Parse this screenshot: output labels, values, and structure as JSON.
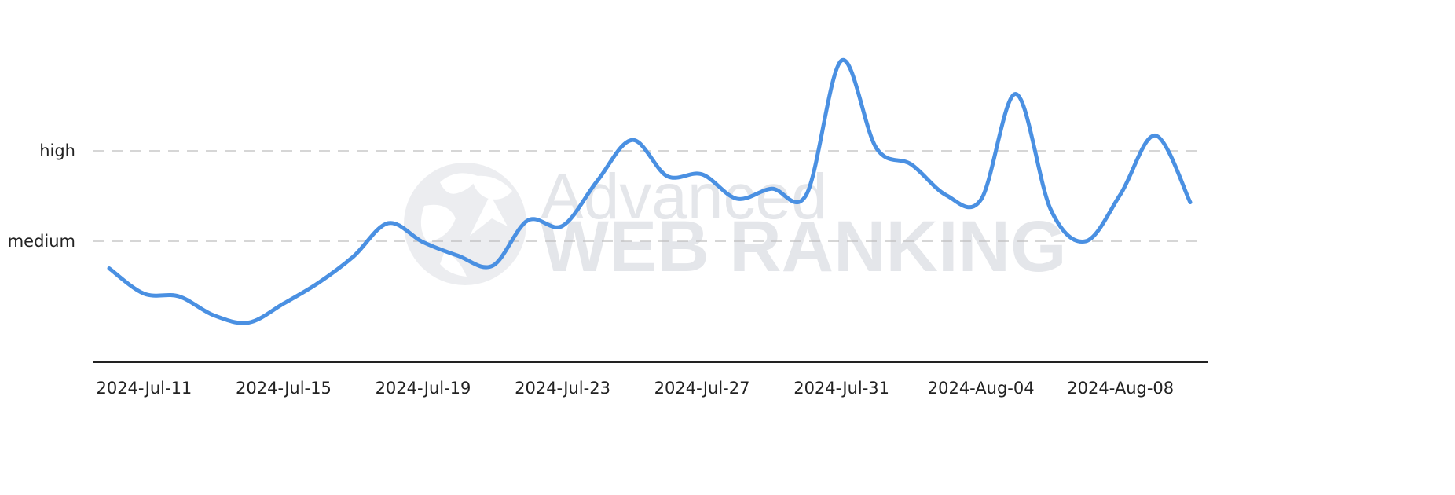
{
  "chart_data": {
    "type": "line",
    "y_levels": [
      {
        "name": "medium",
        "value": 1
      },
      {
        "name": "high",
        "value": 2
      }
    ],
    "ylim": [
      -0.35,
      3.0
    ],
    "x_tick_labels": [
      "2024-Jul-11",
      "2024-Jul-15",
      "2024-Jul-19",
      "2024-Jul-23",
      "2024-Jul-27",
      "2024-Jul-31",
      "2024-Aug-04",
      "2024-Aug-08"
    ],
    "grid": "horizontal dashed at y levels",
    "legend": "none",
    "series": [
      {
        "color": "#4a90e2",
        "points": [
          [
            "2024-07-10",
            0.7
          ],
          [
            "2024-07-11",
            0.42
          ],
          [
            "2024-07-12",
            0.39
          ],
          [
            "2024-07-13",
            0.18
          ],
          [
            "2024-07-14",
            0.1
          ],
          [
            "2024-07-15",
            0.31
          ],
          [
            "2024-07-16",
            0.54
          ],
          [
            "2024-07-17",
            0.83
          ],
          [
            "2024-07-18",
            1.2
          ],
          [
            "2024-07-19",
            0.99
          ],
          [
            "2024-07-20",
            0.84
          ],
          [
            "2024-07-21",
            0.73
          ],
          [
            "2024-07-22",
            1.23
          ],
          [
            "2024-07-23",
            1.17
          ],
          [
            "2024-07-24",
            1.67
          ],
          [
            "2024-07-25",
            2.12
          ],
          [
            "2024-07-26",
            1.72
          ],
          [
            "2024-07-27",
            1.74
          ],
          [
            "2024-07-28",
            1.47
          ],
          [
            "2024-07-29",
            1.58
          ],
          [
            "2024-07-30",
            1.52
          ],
          [
            "2024-07-31",
            3.0
          ],
          [
            "2024-08-01",
            2.03
          ],
          [
            "2024-08-02",
            1.85
          ],
          [
            "2024-08-03",
            1.51
          ],
          [
            "2024-08-04",
            1.46
          ],
          [
            "2024-08-05",
            2.63
          ],
          [
            "2024-08-06",
            1.35
          ],
          [
            "2024-08-07",
            1.0
          ],
          [
            "2024-08-08",
            1.52
          ],
          [
            "2024-08-09",
            2.17
          ],
          [
            "2024-08-10",
            1.43
          ]
        ]
      }
    ]
  },
  "watermark": {
    "line1": "Advanced",
    "line2": "WEB RANKING",
    "icon": "globe-icon"
  },
  "colors": {
    "line": "#4a90e2",
    "grid": "#bdbdbd",
    "axis": "#222222",
    "watermark": "#dcdee3"
  }
}
